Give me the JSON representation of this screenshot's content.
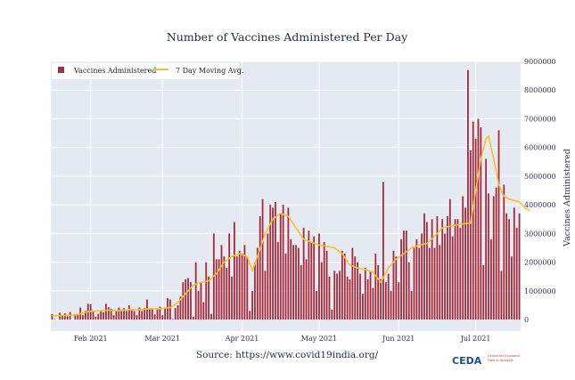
{
  "chart_data": {
    "type": "bar",
    "title": "Number of Vaccines Administered Per Day",
    "ylabel": "Vaccines Administered",
    "xlabel": "",
    "ylim": [
      -400000,
      9000000
    ],
    "y_ticks": [
      0,
      1000000,
      2000000,
      3000000,
      4000000,
      5000000,
      6000000,
      7000000,
      8000000,
      9000000
    ],
    "y_tick_labels": [
      "0",
      "1000000",
      "2000000",
      "3000000",
      "4000000",
      "5000000",
      "6000000",
      "7000000",
      "8000000",
      "9000000"
    ],
    "x_ticks": [
      {
        "label": "Feb 2021",
        "day_index": 15
      },
      {
        "label": "Mar 2021",
        "day_index": 43
      },
      {
        "label": "Apr 2021",
        "day_index": 74
      },
      {
        "label": "May 2021",
        "day_index": 104
      },
      {
        "label": "Jun 2021",
        "day_index": 135
      },
      {
        "label": "Jul 2021",
        "day_index": 165
      }
    ],
    "start_date": "2021-01-16",
    "grid": true,
    "legend_position": "top-left",
    "series": [
      {
        "name": "Vaccines Administered",
        "type": "bar",
        "color": "#a52a3a",
        "values": [
          190000,
          20000,
          0,
          240000,
          150000,
          220000,
          120000,
          260000,
          0,
          150000,
          180000,
          420000,
          150000,
          300000,
          550000,
          540000,
          300000,
          100000,
          200000,
          300000,
          250000,
          550000,
          430000,
          380000,
          150000,
          300000,
          420000,
          350000,
          400000,
          300000,
          500000,
          350000,
          300000,
          150000,
          420000,
          300000,
          400000,
          700000,
          400000,
          400000,
          180000,
          350000,
          450000,
          150000,
          400000,
          750000,
          700000,
          20000,
          400000,
          500000,
          800000,
          1300000,
          1400000,
          1450000,
          1300000,
          100000,
          2000000,
          1000000,
          1300000,
          600000,
          2000000,
          1500000,
          200000,
          3000000,
          2100000,
          2100000,
          2600000,
          2200000,
          1800000,
          3000000,
          1500000,
          3400000,
          2200000,
          2400000,
          2300000,
          2600000,
          2200000,
          300000,
          1000000,
          2000000,
          2500000,
          3600000,
          4200000,
          1700000,
          3000000,
          4000000,
          3900000,
          4100000,
          2700000,
          3700000,
          4000000,
          2300000,
          3900000,
          2800000,
          2600000,
          2600000,
          2500000,
          1900000,
          3200000,
          2100000,
          3100000,
          2700000,
          2900000,
          1000000,
          3000000,
          2000000,
          2700000,
          2400000,
          1500000,
          350000,
          1700000,
          1600000,
          1700000,
          2400000,
          2300000,
          1500000,
          1400000,
          2500000,
          2200000,
          2000000,
          1600000,
          900000,
          1800000,
          1400000,
          1700000,
          1100000,
          2300000,
          1900000,
          1400000,
          4800000,
          1300000,
          1600000,
          1000000,
          2400000,
          2200000,
          1300000,
          2800000,
          3100000,
          3100000,
          2000000,
          1000000,
          2500000,
          2800000,
          2500000,
          3000000,
          3700000,
          3400000,
          2500000,
          3500000,
          2500000,
          3600000,
          2600000,
          3500000,
          3000000,
          3600000,
          4200000,
          2900000,
          3500000,
          3500000,
          3200000,
          4300000,
          3900000,
          8700000,
          5900000,
          6900000,
          6300000,
          7000000,
          6700000,
          1900000,
          5600000,
          4400000,
          2800000,
          4300000,
          4600000,
          6600000,
          1700000,
          4700000,
          3700000,
          3500000,
          2200000,
          3900000,
          3200000,
          3700000
        ],
        "label_in_legend": "Vaccines Administered"
      },
      {
        "name": "7 Day Moving Avg.",
        "type": "line",
        "color": "#f5c02a",
        "points": [
          [
            0,
            130000
          ],
          [
            7,
            150000
          ],
          [
            10,
            180000
          ],
          [
            14,
            280000
          ],
          [
            18,
            300000
          ],
          [
            22,
            330000
          ],
          [
            26,
            300000
          ],
          [
            30,
            350000
          ],
          [
            34,
            340000
          ],
          [
            38,
            380000
          ],
          [
            42,
            380000
          ],
          [
            46,
            420000
          ],
          [
            49,
            600000
          ],
          [
            52,
            900000
          ],
          [
            55,
            1200000
          ],
          [
            58,
            1300000
          ],
          [
            61,
            1350000
          ],
          [
            64,
            1600000
          ],
          [
            67,
            2000000
          ],
          [
            70,
            2200000
          ],
          [
            73,
            2300000
          ],
          [
            76,
            2200000
          ],
          [
            78,
            1700000
          ],
          [
            80,
            2200000
          ],
          [
            83,
            3000000
          ],
          [
            86,
            3500000
          ],
          [
            89,
            3700000
          ],
          [
            92,
            3600000
          ],
          [
            95,
            3200000
          ],
          [
            98,
            2800000
          ],
          [
            101,
            2700000
          ],
          [
            104,
            2600000
          ],
          [
            107,
            2550000
          ],
          [
            110,
            2500000
          ],
          [
            113,
            2300000
          ],
          [
            116,
            1900000
          ],
          [
            119,
            1800000
          ],
          [
            122,
            1750000
          ],
          [
            125,
            1650000
          ],
          [
            128,
            1300000
          ],
          [
            131,
            1800000
          ],
          [
            134,
            2100000
          ],
          [
            137,
            2300000
          ],
          [
            140,
            2500000
          ],
          [
            143,
            2600000
          ],
          [
            146,
            2650000
          ],
          [
            149,
            2900000
          ],
          [
            152,
            3200000
          ],
          [
            155,
            3250000
          ],
          [
            158,
            3300000
          ],
          [
            161,
            3350000
          ],
          [
            163,
            3350000
          ],
          [
            165,
            4500000
          ],
          [
            167,
            5600000
          ],
          [
            169,
            6300000
          ],
          [
            170,
            6400000
          ],
          [
            172,
            5600000
          ],
          [
            174,
            4700000
          ],
          [
            176,
            4300000
          ],
          [
            178,
            4200000
          ],
          [
            180,
            4150000
          ],
          [
            182,
            4100000
          ],
          [
            184,
            3900000
          ],
          [
            186,
            3800000
          ]
        ],
        "label_in_legend": "7 Day Moving Avg."
      }
    ]
  },
  "source": "Source: https://www.covid19india.org/",
  "logo": {
    "name": "CEDA",
    "subtitle_line1": "Centre for Economic",
    "subtitle_line2": "Data & Analysis"
  },
  "colors": {
    "plot_bg": "#e4e9f2",
    "grid": "#ffffff",
    "bar": "#a52a3a",
    "line": "#f5c02a"
  }
}
